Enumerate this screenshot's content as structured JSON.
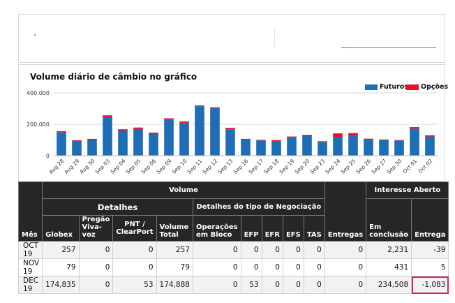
{
  "chart_data": {
    "type": "bar",
    "title": "Volume diário de câmbio no gráfico",
    "legend": [
      {
        "name": "Futuros",
        "color": "#1f6eb5"
      },
      {
        "name": "Opções",
        "color": "#e8112d"
      }
    ],
    "categories": [
      "Aug 28",
      "Aug 29",
      "Aug 30",
      "Sep 03",
      "Sep 04",
      "Sep 05",
      "Sep 06",
      "Sep 09",
      "Sep 10",
      "Sep 11",
      "Sep 12",
      "Sep 13",
      "Sep 16",
      "Sep 17",
      "Sep 18",
      "Sep 19",
      "Sep 20",
      "Sep 23",
      "Sep 24",
      "Sep 25",
      "Sep 26",
      "Sep 27",
      "Sep 30",
      "Oct 01",
      "Oct 02"
    ],
    "series": [
      {
        "name": "Futuros",
        "values": [
          148000,
          95000,
          100000,
          245000,
          160000,
          170000,
          140000,
          230000,
          210000,
          315000,
          302000,
          168000,
          102000,
          97000,
          94000,
          115000,
          125000,
          88000,
          120000,
          126000,
          102000,
          98000,
          97000,
          172000,
          122000
        ]
      },
      {
        "name": "Opções",
        "values": [
          8000,
          4000,
          7000,
          12000,
          8000,
          9000,
          7000,
          8000,
          9000,
          5000,
          6000,
          9000,
          5000,
          4000,
          6000,
          7000,
          8000,
          4000,
          22000,
          18000,
          6000,
          5000,
          3000,
          10000,
          8000
        ]
      }
    ],
    "ylim": [
      0,
      400000
    ],
    "yticks": [
      "0",
      "200.000",
      "400.000"
    ],
    "ytick_values": [
      0,
      200000,
      400000
    ],
    "grid": true
  },
  "table": {
    "header": {
      "mes": "Mês",
      "volume": "Volume",
      "detalhes": "Detalhes",
      "detalhes_tipo": "Detalhes do tipo de Negociação",
      "interesse": "Interesse Aberto",
      "globex": "Globex",
      "pregao_1": "Pregão",
      "pregao_2": "Viva-voz",
      "pnt_1": "PNT /",
      "pnt_2": "ClearPort",
      "vol_1": "Volume",
      "vol_2": "Total",
      "oper_1": "Operações",
      "oper_2": "em Bloco",
      "efp": "EFP",
      "efr": "EFR",
      "efs": "EFS",
      "tas": "TAS",
      "entregas": "Entregas",
      "emconc_1": "Em",
      "emconc_2": "conclusão",
      "entrega": "Entrega"
    },
    "rows": [
      {
        "mes": "OCT 19",
        "globex": "257",
        "pregao": "0",
        "pnt": "0",
        "total": "257",
        "bloco": "0",
        "efp": "0",
        "efr": "0",
        "efs": "0",
        "tas": "0",
        "entregas": "0",
        "conclusao": "2,231",
        "entrega": "-39"
      },
      {
        "mes": "NOV 19",
        "globex": "79",
        "pregao": "0",
        "pnt": "0",
        "total": "79",
        "bloco": "0",
        "efp": "0",
        "efr": "0",
        "efs": "0",
        "tas": "0",
        "entregas": "0",
        "conclusao": "431",
        "entrega": "5"
      },
      {
        "mes": "DEC 19",
        "globex": "174,835",
        "pregao": "0",
        "pnt": "53",
        "total": "174,888",
        "bloco": "0",
        "efp": "53",
        "efr": "0",
        "efs": "0",
        "tas": "0",
        "entregas": "0",
        "conclusao": "234,508",
        "entrega": "-1,083"
      }
    ]
  }
}
